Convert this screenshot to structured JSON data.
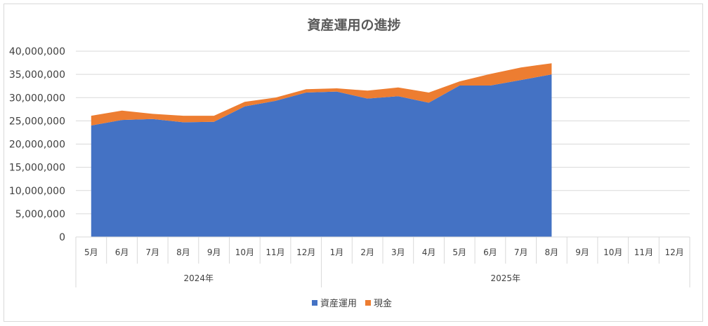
{
  "chart_data": {
    "type": "area",
    "title": "資産運用の進捗",
    "categories": [
      "5月",
      "6月",
      "7月",
      "8月",
      "9月",
      "10月",
      "11月",
      "12月",
      "1月",
      "2月",
      "3月",
      "4月",
      "5月",
      "6月",
      "7月",
      "8月",
      "9月",
      "10月",
      "11月",
      "12月"
    ],
    "year_groups": [
      {
        "label": "2024年",
        "count": 8
      },
      {
        "label": "2025年",
        "count": 12
      }
    ],
    "stacked": true,
    "series": [
      {
        "name": "資産運用",
        "color": "#4472c4",
        "values": [
          24000000,
          25200000,
          25400000,
          24700000,
          24800000,
          28100000,
          29300000,
          31100000,
          31300000,
          29800000,
          30300000,
          28900000,
          32600000,
          32600000,
          33800000,
          35000000,
          null,
          null,
          null,
          null
        ]
      },
      {
        "name": "現金",
        "color": "#ed7d31",
        "values": [
          2100000,
          2000000,
          1100000,
          1400000,
          1300000,
          1000000,
          700000,
          700000,
          700000,
          1700000,
          1900000,
          2200000,
          900000,
          2500000,
          2700000,
          2400000,
          null,
          null,
          null,
          null
        ]
      }
    ],
    "ylim": [
      0,
      40000000
    ],
    "yticks": [
      "0",
      "5,000,000",
      "10,000,000",
      "15,000,000",
      "20,000,000",
      "25,000,000",
      "30,000,000",
      "35,000,000",
      "40,000,000"
    ],
    "ytick_values": [
      0,
      5000000,
      10000000,
      15000000,
      20000000,
      25000000,
      30000000,
      35000000,
      40000000
    ],
    "grid": true,
    "legend": "bottom"
  }
}
